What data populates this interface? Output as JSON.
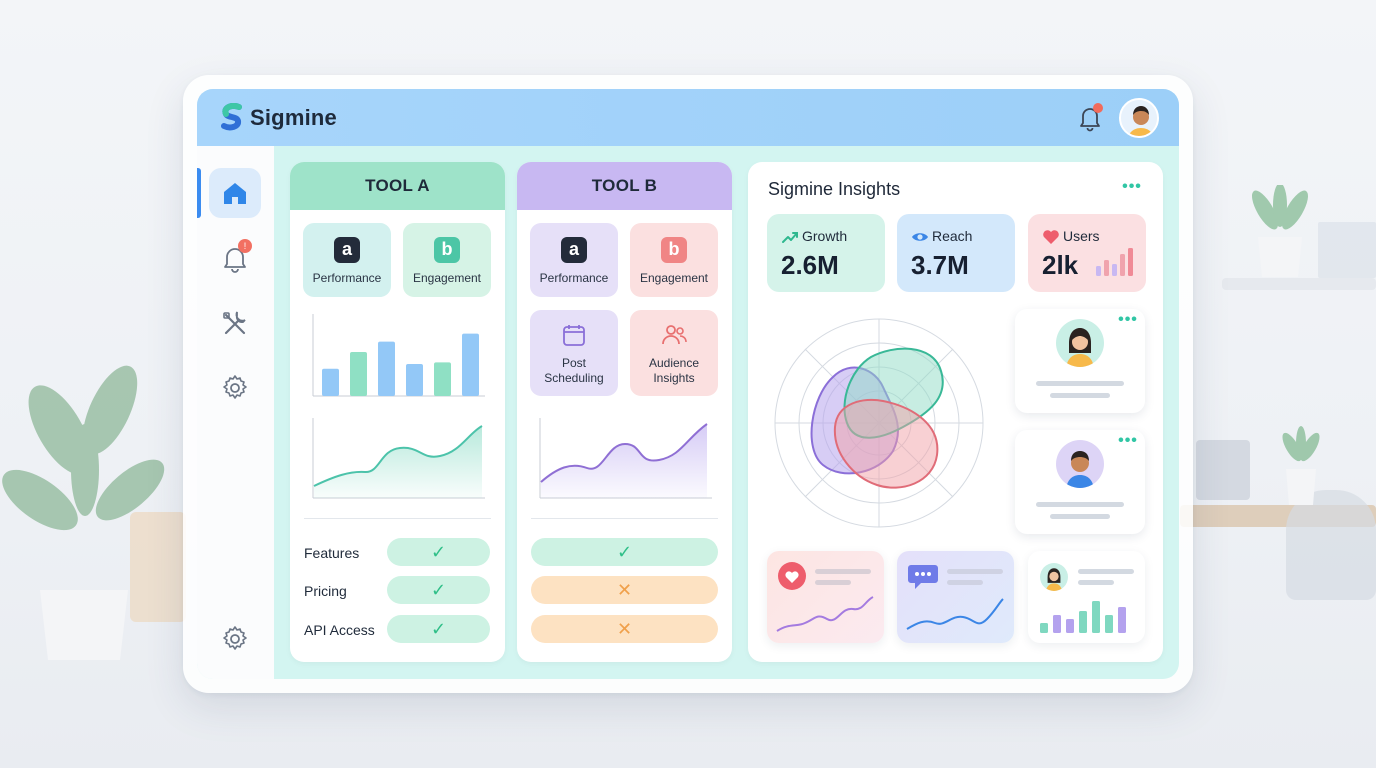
{
  "app": {
    "brand": "Sigmine"
  },
  "colors": {
    "accent": "#3b8cf0",
    "tool_a": "#9ee3c9",
    "tool_b": "#c8b8f2",
    "notification": "#f26b5b"
  },
  "sidebar": {
    "items": [
      {
        "icon": "home-icon",
        "active": true
      },
      {
        "icon": "bell-icon",
        "badge": "!"
      },
      {
        "icon": "tools-icon"
      },
      {
        "icon": "settings-icon"
      },
      {
        "icon": "settings-icon-bottom"
      }
    ]
  },
  "tool_a": {
    "title": "TOOL A",
    "tiles": [
      {
        "glyph": "a",
        "label": "Performance"
      },
      {
        "glyph": "b",
        "label": "Engagement"
      }
    ],
    "bar_values": [
      0.34,
      0.55,
      0.68,
      0.4,
      0.42,
      0.78
    ],
    "rows": [
      {
        "label": "Features",
        "status": "✓"
      },
      {
        "label": "Pricing",
        "status": "✓"
      },
      {
        "label": "API Access",
        "status": "✓"
      }
    ]
  },
  "tool_b": {
    "title": "TOOL B",
    "tiles": [
      {
        "glyph": "a",
        "label": "Performance"
      },
      {
        "glyph": "b",
        "label": "Engagement"
      },
      {
        "icon": "calendar-icon",
        "label_line1": "Post",
        "label_line2": "Scheduling"
      },
      {
        "icon": "people-icon",
        "label_line1": "Audience",
        "label_line2": "Insights"
      }
    ],
    "rows": [
      {
        "status": "✓"
      },
      {
        "status": "✕"
      },
      {
        "status": "✕"
      }
    ]
  },
  "insights": {
    "title": "Sigmine Insights",
    "menu": "•••",
    "stats": [
      {
        "label": "Growth",
        "value": "2.6M",
        "icon": "trend-up-icon"
      },
      {
        "label": "Reach",
        "value": "3.7M",
        "icon": "eye-icon"
      },
      {
        "label": "Users",
        "value": "2lk",
        "icon": "heart-icon"
      }
    ]
  }
}
